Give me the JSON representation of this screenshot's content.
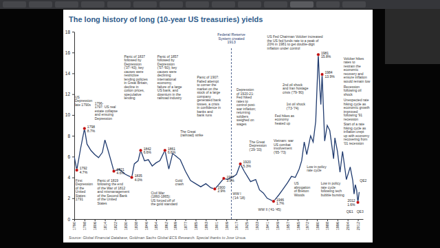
{
  "chart_data": {
    "type": "line",
    "title": "The long history of long (10-year US treasuries) yields",
    "source": "Source: Global Financial Database, Goldman Sachs Global ECS Research. Special thanks to Jose Ursua.",
    "color": "#1f3a6e",
    "grid": false,
    "xlim": [
      1790,
      2016
    ],
    "xticks": [
      1790,
      1798,
      1806,
      1814,
      1822,
      1830,
      1838,
      1846,
      1854,
      1862,
      1869,
      1877,
      1885,
      1893,
      1901,
      1909,
      1917,
      1925,
      1933,
      1941,
      1949,
      1957,
      1965,
      1972,
      1980,
      1988,
      1996,
      2004,
      2012
    ],
    "ylim": [
      0,
      18
    ],
    "yticks": [
      0,
      2,
      4,
      6,
      8,
      10,
      12,
      14,
      16,
      18
    ],
    "x": [
      1790,
      1792,
      1795,
      1798,
      1800,
      1803,
      1806,
      1809,
      1812,
      1814,
      1816,
      1819,
      1821,
      1825,
      1830,
      1835,
      1837,
      1840,
      1842,
      1845,
      1848,
      1851,
      1854,
      1857,
      1861,
      1864,
      1867,
      1870,
      1873,
      1877,
      1881,
      1885,
      1889,
      1893,
      1897,
      1900,
      1903,
      1907,
      1910,
      1913,
      1915,
      1917,
      1920,
      1923,
      1926,
      1928,
      1932,
      1935,
      1938,
      1941,
      1946,
      1950,
      1953,
      1957,
      1960,
      1963,
      1966,
      1968,
      1970,
      1972,
      1973,
      1975,
      1977,
      1979,
      1981,
      1982,
      1983,
      1984,
      1986,
      1988,
      1990,
      1993,
      1994,
      1996,
      1998,
      2000,
      2003,
      2006,
      2008,
      2009,
      2010,
      2011,
      2012,
      2013
    ],
    "values": [
      6.0,
      4.7,
      6.8,
      8.7,
      7.2,
      6.6,
      6.2,
      5.9,
      6.4,
      7.6,
      6.8,
      5.5,
      4.6,
      4.8,
      4.3,
      4.0,
      5.3,
      5.6,
      6.6,
      5.6,
      5.7,
      5.1,
      5.4,
      5.6,
      6.6,
      4.8,
      6.3,
      6.0,
      5.7,
      4.6,
      3.7,
      3.4,
      3.1,
      3.4,
      3.0,
      2.9,
      3.3,
      3.9,
      3.8,
      4.0,
      4.1,
      4.3,
      5.3,
      4.6,
      4.0,
      3.6,
      3.8,
      2.8,
      2.5,
      2.0,
      1.7,
      2.3,
      2.8,
      3.5,
      4.1,
      4.0,
      4.8,
      5.6,
      7.4,
      6.2,
      6.8,
      8.0,
      7.4,
      9.4,
      15.8,
      13.0,
      11.0,
      13.9,
      7.5,
      9.0,
      8.5,
      5.8,
      7.8,
      6.5,
      4.5,
      6.5,
      3.8,
      5.0,
      3.7,
      2.4,
      3.3,
      2.8,
      1.6,
      2.6
    ],
    "highlights": [
      {
        "x": 1792,
        "y": 4.7,
        "label": [
          "1792",
          "4.7%"
        ],
        "color": "#c00000"
      },
      {
        "x": 1798,
        "y": 8.7,
        "label": [
          "1798",
          "8.7%"
        ],
        "color": "#c00000"
      },
      {
        "x": 1821,
        "y": 4.6,
        "label": [
          "1821",
          "4.6%"
        ],
        "color": "#c00000"
      },
      {
        "x": 1835,
        "y": 4.0,
        "label": [
          "1835",
          "4.0%"
        ],
        "color": "#c00000"
      },
      {
        "x": 1842,
        "y": 6.6,
        "label": [
          "1842",
          "6.6%"
        ],
        "color": "#c00000"
      },
      {
        "x": 1861,
        "y": 6.6,
        "label": [
          "1861",
          "6.6%"
        ],
        "color": "#c00000"
      },
      {
        "x": 1900,
        "y": 2.9,
        "label": [
          "1900",
          "2.9%"
        ],
        "color": "#c00000"
      },
      {
        "x": 1907,
        "y": 3.9,
        "label": [
          "1907",
          "3.9%"
        ],
        "color": "#c00000"
      },
      {
        "x": 1920,
        "y": 5.3,
        "label": [
          "1920",
          "5.3%"
        ],
        "color": "#c00000"
      },
      {
        "x": 1946,
        "y": 1.7,
        "label": [
          "1946",
          "1.7%"
        ],
        "color": "#c00000"
      },
      {
        "x": 1981,
        "y": 15.8,
        "label": [
          "1981",
          "15.8%"
        ],
        "color": "#c00000"
      },
      {
        "x": 1984,
        "y": 13.9,
        "label": [
          "1984",
          "13.9%"
        ],
        "color": "#c00000"
      },
      {
        "x": 2012,
        "y": 1.6,
        "label": [
          "2012",
          "1.6%"
        ],
        "color": "#c00000"
      }
    ],
    "reference_lines": [
      {
        "x": 1913,
        "label": [
          "Federal Reserve",
          "System created",
          "1913"
        ],
        "line_style": "dashed"
      }
    ],
    "annotations": [
      {
        "text": [
          "US",
          "Depression",
          "late 1790s"
        ]
      },
      {
        "text": [
          "1796-",
          "1797: US real",
          "estate collapse",
          "and ensuing",
          "Depression"
        ]
      },
      {
        "text": [
          "First",
          "Depression",
          "of the",
          "United",
          "States:",
          "1791"
        ]
      },
      {
        "text": [
          "Panic of 1819",
          "following the end",
          "of the War of 1812",
          "and mismanagement",
          "of the Second Bank",
          "of the United",
          "States"
        ]
      },
      {
        "text": [
          "Panic of 1837",
          "followed by",
          "Depression",
          "('37-'43); key",
          "causes were",
          "restrictive",
          "lending policies",
          "in Great Britain,",
          "decline in",
          "cotton prices,",
          "speculative",
          "lending"
        ]
      },
      {
        "text": [
          "Panic of 1857",
          "followed by",
          "Depression",
          "('57-'60); key",
          "causes were",
          "declining",
          "international",
          "economy,",
          "failure of a large",
          "US bank, and",
          "downturn in the",
          "railroad industry"
        ]
      },
      {
        "text": [
          "Civil War",
          "(1860-1865):",
          "US forced off of",
          "the gold standard"
        ]
      },
      {
        "text": [
          "The Great",
          "(railroad) strike"
        ]
      },
      {
        "text": [
          "Gold",
          "crash"
        ]
      },
      {
        "text": [
          "Panic of 1907:",
          "Failed attempt",
          "to corner the",
          "market on the",
          "stock of a large",
          "company",
          "generated bank",
          "losses, a crisis",
          "in confidence in",
          "banks and",
          "bank runs"
        ]
      },
      {
        "text": [
          "Depression",
          "of 1920-21:",
          "Fed hiked",
          "rates to",
          "control post-",
          "war inflation;",
          "returning",
          "soldiers",
          "weighed on",
          "wages"
        ]
      },
      {
        "text": [
          "The Great",
          "Depression",
          "('29-'33)"
        ]
      },
      {
        "text": [
          "WW I",
          "('14-'18)"
        ]
      },
      {
        "text": [
          "WW II ('41-'45)"
        ]
      },
      {
        "text": [
          "US Fed Chairman Volcker increased",
          "the US fed funds rate to a peak of",
          "20% in 1981 to get double-digit",
          "inflation under control"
        ]
      },
      {
        "text": [
          "2nd oil shock",
          "and Iran hostage",
          "crisis ('79-'80)"
        ]
      },
      {
        "text": [
          "1st oil shock",
          "('73-'74)"
        ]
      },
      {
        "text": [
          "Fed hikes as",
          "economy",
          "heated up"
        ]
      },
      {
        "text": [
          "Vietnam: war",
          "US combat",
          "involvement",
          "('65-'73)"
        ]
      },
      {
        "text": [
          "US",
          "abrogation",
          "of Bretton",
          "Woods"
        ]
      },
      {
        "text": [
          "Low in policy",
          "rate cycle"
        ]
      },
      {
        "text": [
          "Low in policy",
          "rate cycle",
          "following tech",
          "bubble bursting"
        ]
      },
      {
        "text": [
          "Volcker hikes",
          "rates to",
          "restrain the",
          "economic",
          "recovery and",
          "ensure inflation",
          "would remain low"
        ]
      },
      {
        "text": [
          "Recession",
          "following oil",
          "shock"
        ]
      },
      {
        "text": [
          "Unexpected rate",
          "hiking cycle as",
          "economic growth",
          "improved",
          "following '91",
          "recession"
        ]
      },
      {
        "text": [
          "Start of a rate",
          "hiking cycle as",
          "inflation crept",
          "up with economy",
          "recovering from",
          "'01 recession"
        ]
      },
      {
        "text": [
          "QE1"
        ]
      },
      {
        "text": [
          "QE2"
        ]
      },
      {
        "text": [
          "QE3"
        ]
      }
    ]
  }
}
